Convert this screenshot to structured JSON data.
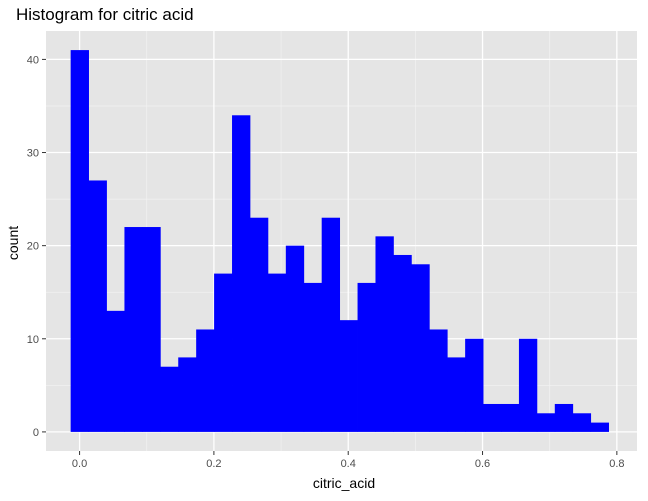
{
  "chart_data": {
    "type": "bar",
    "subtype": "histogram",
    "title": "Histogram for citric acid",
    "xlabel": "citric_acid",
    "ylabel": "count",
    "bin_width": 0.0267,
    "bin_start": -0.0133,
    "counts": [
      41,
      27,
      13,
      22,
      22,
      7,
      8,
      11,
      17,
      34,
      23,
      17,
      20,
      16,
      23,
      12,
      16,
      21,
      19,
      18,
      11,
      8,
      10,
      3,
      3,
      10,
      2,
      3,
      2,
      1
    ],
    "xlim": [
      -0.05,
      0.83
    ],
    "ylim": [
      -2.05,
      43.05
    ],
    "x_ticks": [
      0.0,
      0.2,
      0.4,
      0.6,
      0.8
    ],
    "x_tick_labels": [
      "0.0",
      "0.2",
      "0.4",
      "0.6",
      "0.8"
    ],
    "y_ticks": [
      0,
      10,
      20,
      30,
      40
    ],
    "y_tick_labels": [
      "0",
      "10",
      "20",
      "30",
      "40"
    ],
    "grid": true,
    "legend": "none",
    "colors": {
      "bar_fill": "#0000FF",
      "panel_background": "#E5E5E5",
      "grid_major": "#FFFFFF",
      "grid_minor": "#F2F2F2",
      "text": "#000000",
      "tick_label": "#4D4D4D"
    }
  }
}
